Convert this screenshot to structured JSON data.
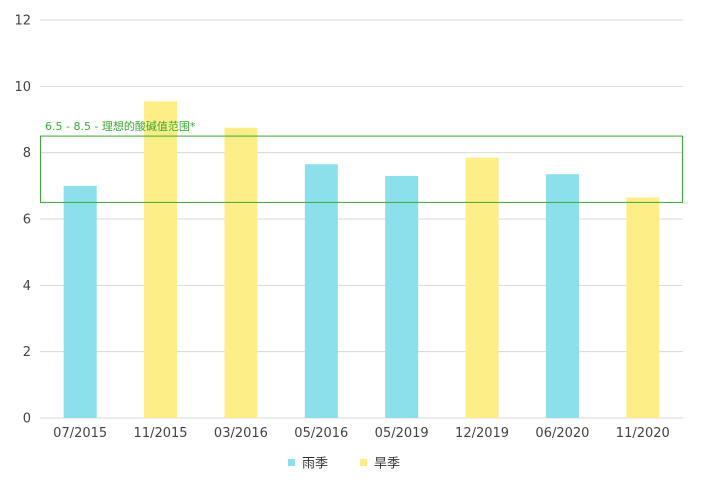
{
  "chart_data": {
    "type": "bar",
    "categories": [
      "07/2015",
      "11/2015",
      "03/2016",
      "05/2016",
      "05/2019",
      "12/2019",
      "06/2020",
      "11/2020"
    ],
    "values": [
      7.0,
      9.55,
      8.75,
      7.65,
      7.3,
      7.85,
      7.35,
      6.65
    ],
    "season": [
      "rainy",
      "dry",
      "dry",
      "rainy",
      "rainy",
      "dry",
      "rainy",
      "dry"
    ],
    "series": [
      {
        "key": "rainy",
        "name": "雨季",
        "color": "#8be0ec"
      },
      {
        "key": "dry",
        "name": "旱季",
        "color": "#fdee88"
      }
    ],
    "ylim": [
      0,
      12
    ],
    "yticks": [
      0,
      2,
      4,
      6,
      8,
      10,
      12
    ],
    "grid": true,
    "legend_position": "bottom-center",
    "reference_band": {
      "from": 6.5,
      "to": 8.5,
      "label": "6.5 - 8.5 - 理想的酸碱值范围*",
      "color": "#3aa935"
    }
  }
}
